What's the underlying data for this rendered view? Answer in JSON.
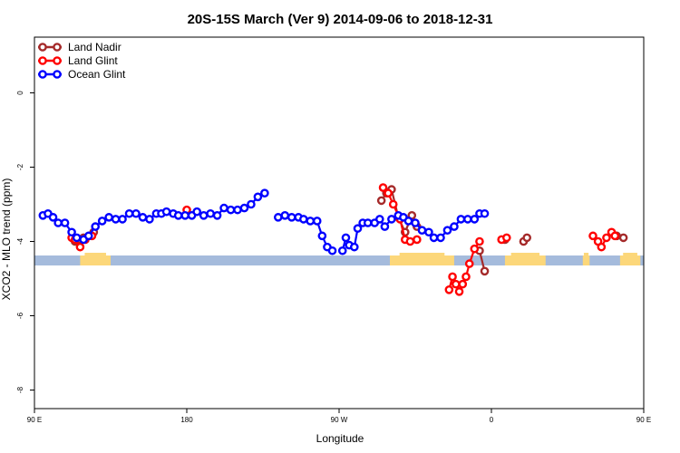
{
  "chart_data": {
    "type": "line",
    "title": "20S-15S March (Ver 9)   2014-09-06 to 2018-12-31",
    "xlabel": "Longitude",
    "ylabel": "XCO2 - MLO trend (ppm)",
    "xlim": [
      90,
      450
    ],
    "ylim": [
      -8.5,
      1.5
    ],
    "x_ticks": [
      {
        "value": 90,
        "label": "90 E"
      },
      {
        "value": 180,
        "label": "180"
      },
      {
        "value": 270,
        "label": "90 W"
      },
      {
        "value": 360,
        "label": "0"
      },
      {
        "value": 450,
        "label": "90 E"
      },
      {
        "value": 540,
        "label": "180"
      }
    ],
    "y_ticks": [
      {
        "value": 0,
        "label": "0"
      },
      {
        "value": -2,
        "label": "-2"
      },
      {
        "value": -4,
        "label": "-4"
      },
      {
        "value": -6,
        "label": "-6"
      },
      {
        "value": -8,
        "label": "-8"
      }
    ],
    "legend_position": "top-left",
    "grid": false,
    "band": {
      "y": -4.5,
      "ocean_color": "#a5bbdc",
      "land_color": "#fcd77a"
    },
    "land_segments": [
      [
        117,
        135
      ],
      [
        300,
        338
      ],
      [
        368,
        392
      ],
      [
        414,
        418
      ],
      [
        436,
        448
      ]
    ],
    "series": [
      {
        "name": "Land Nadir",
        "color": "#a52a2a",
        "points": [
          [
            114,
            -4.0
          ],
          [
            116,
            -3.95
          ],
          [
            119,
            -3.9
          ],
          [
            125,
            -3.75
          ],
          [
            295,
            -2.9
          ],
          [
            298,
            -2.7
          ],
          [
            301,
            -2.6
          ],
          [
            305,
            -3.35
          ],
          [
            309,
            -3.75
          ],
          [
            313,
            -3.3
          ],
          [
            316,
            -3.6
          ],
          [
            353,
            -4.25
          ],
          [
            356,
            -4.8
          ],
          [
            368,
            -3.95
          ],
          [
            379,
            -4.0
          ],
          [
            381,
            -3.9
          ],
          [
            434,
            -3.85
          ],
          [
            438,
            -3.9
          ]
        ]
      },
      {
        "name": "Land Glint",
        "color": "#ff0000",
        "points": [
          [
            112,
            -3.9
          ],
          [
            114,
            -3.95
          ],
          [
            117,
            -4.15
          ],
          [
            120,
            -3.95
          ],
          [
            124,
            -3.85
          ],
          [
            180,
            -3.15
          ],
          [
            296,
            -2.55
          ],
          [
            299,
            -2.7
          ],
          [
            302,
            -3.0
          ],
          [
            306,
            -3.4
          ],
          [
            309,
            -3.95
          ],
          [
            312,
            -4.0
          ],
          [
            316,
            -3.95
          ],
          [
            335,
            -5.3
          ],
          [
            337,
            -4.95
          ],
          [
            339,
            -5.15
          ],
          [
            341,
            -5.35
          ],
          [
            343,
            -5.15
          ],
          [
            345,
            -4.95
          ],
          [
            347,
            -4.6
          ],
          [
            350,
            -4.2
          ],
          [
            353,
            -4.0
          ],
          [
            366,
            -3.95
          ],
          [
            369,
            -3.9
          ],
          [
            420,
            -3.85
          ],
          [
            423,
            -4.0
          ],
          [
            425,
            -4.15
          ],
          [
            428,
            -3.9
          ],
          [
            431,
            -3.75
          ],
          [
            433,
            -3.85
          ]
        ]
      },
      {
        "name": "Ocean Glint",
        "color": "#0000ff",
        "points": [
          [
            95,
            -3.3
          ],
          [
            98,
            -3.25
          ],
          [
            101,
            -3.35
          ],
          [
            104,
            -3.5
          ],
          [
            108,
            -3.5
          ],
          [
            112,
            -3.75
          ],
          [
            115,
            -3.9
          ],
          [
            119,
            -3.95
          ],
          [
            122,
            -3.85
          ],
          [
            126,
            -3.6
          ],
          [
            130,
            -3.45
          ],
          [
            134,
            -3.35
          ],
          [
            138,
            -3.4
          ],
          [
            142,
            -3.4
          ],
          [
            146,
            -3.25
          ],
          [
            150,
            -3.25
          ],
          [
            154,
            -3.35
          ],
          [
            158,
            -3.4
          ],
          [
            162,
            -3.25
          ],
          [
            165,
            -3.25
          ],
          [
            168,
            -3.2
          ],
          [
            172,
            -3.25
          ],
          [
            175,
            -3.3
          ],
          [
            179,
            -3.3
          ],
          [
            183,
            -3.3
          ],
          [
            186,
            -3.2
          ],
          [
            190,
            -3.3
          ],
          [
            194,
            -3.25
          ],
          [
            198,
            -3.3
          ],
          [
            202,
            -3.1
          ],
          [
            206,
            -3.15
          ],
          [
            210,
            -3.15
          ],
          [
            214,
            -3.1
          ],
          [
            218,
            -3.0
          ],
          [
            222,
            -2.8
          ],
          [
            226,
            -2.7
          ],
          [
            234,
            -3.35
          ],
          [
            238,
            -3.3
          ],
          [
            242,
            -3.35
          ],
          [
            246,
            -3.35
          ],
          [
            249,
            -3.4
          ],
          [
            253,
            -3.45
          ],
          [
            257,
            -3.45
          ],
          [
            260,
            -3.85
          ],
          [
            263,
            -4.15
          ],
          [
            266,
            -4.25
          ],
          [
            272,
            -4.25
          ],
          [
            274,
            -3.9
          ],
          [
            276,
            -4.1
          ],
          [
            279,
            -4.15
          ],
          [
            281,
            -3.65
          ],
          [
            284,
            -3.5
          ],
          [
            287,
            -3.5
          ],
          [
            291,
            -3.5
          ],
          [
            294,
            -3.4
          ],
          [
            297,
            -3.6
          ],
          [
            301,
            -3.4
          ],
          [
            305,
            -3.3
          ],
          [
            308,
            -3.35
          ],
          [
            311,
            -3.45
          ],
          [
            315,
            -3.5
          ],
          [
            319,
            -3.7
          ],
          [
            323,
            -3.75
          ],
          [
            326,
            -3.9
          ],
          [
            330,
            -3.9
          ],
          [
            334,
            -3.7
          ],
          [
            338,
            -3.6
          ],
          [
            342,
            -3.4
          ],
          [
            346,
            -3.4
          ],
          [
            350,
            -3.4
          ],
          [
            353,
            -3.25
          ],
          [
            356,
            -3.25
          ]
        ]
      }
    ]
  }
}
